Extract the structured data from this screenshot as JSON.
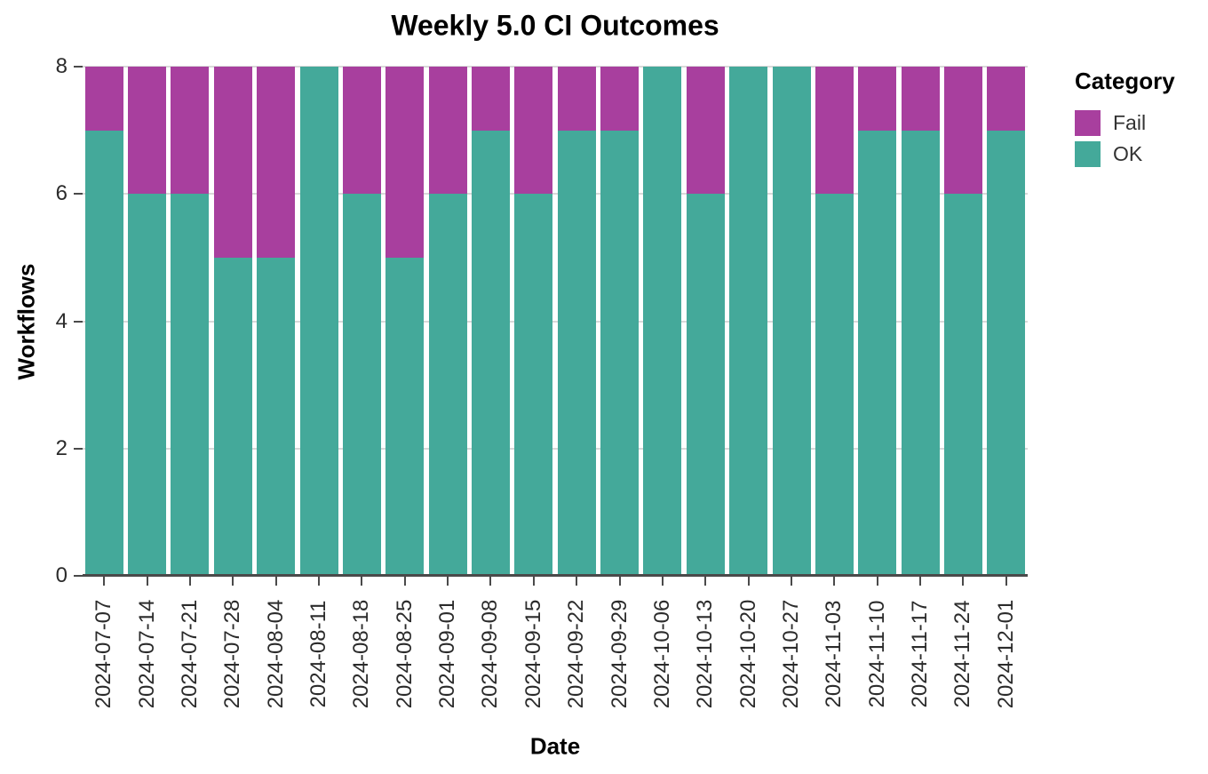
{
  "chart_data": {
    "type": "bar",
    "stacked": true,
    "title": "Weekly 5.0 CI Outcomes",
    "xlabel": "Date",
    "ylabel": "Workflows",
    "ylim": [
      0,
      8
    ],
    "yticks": [
      0,
      2,
      4,
      6,
      8
    ],
    "grid": true,
    "categories": [
      "2024-07-07",
      "2024-07-14",
      "2024-07-21",
      "2024-07-28",
      "2024-08-04",
      "2024-08-11",
      "2024-08-18",
      "2024-08-25",
      "2024-09-01",
      "2024-09-08",
      "2024-09-15",
      "2024-09-22",
      "2024-09-29",
      "2024-10-06",
      "2024-10-13",
      "2024-10-20",
      "2024-10-27",
      "2024-11-03",
      "2024-11-10",
      "2024-11-17",
      "2024-11-24",
      "2024-12-01"
    ],
    "series": [
      {
        "name": "OK",
        "color": "#44a99a",
        "values": [
          7,
          6,
          6,
          5,
          5,
          8,
          6,
          5,
          6,
          7,
          6,
          7,
          7,
          8,
          6,
          8,
          8,
          6,
          7,
          7,
          6,
          7
        ]
      },
      {
        "name": "Fail",
        "color": "#a83f9e",
        "values": [
          1,
          2,
          2,
          3,
          3,
          0,
          2,
          3,
          2,
          1,
          2,
          1,
          1,
          0,
          2,
          0,
          0,
          2,
          1,
          1,
          2,
          1
        ]
      }
    ],
    "legend": {
      "title": "Category",
      "position": "right",
      "items": [
        {
          "label": "Fail",
          "color": "#a83f9e"
        },
        {
          "label": "OK",
          "color": "#44a99a"
        }
      ]
    }
  }
}
